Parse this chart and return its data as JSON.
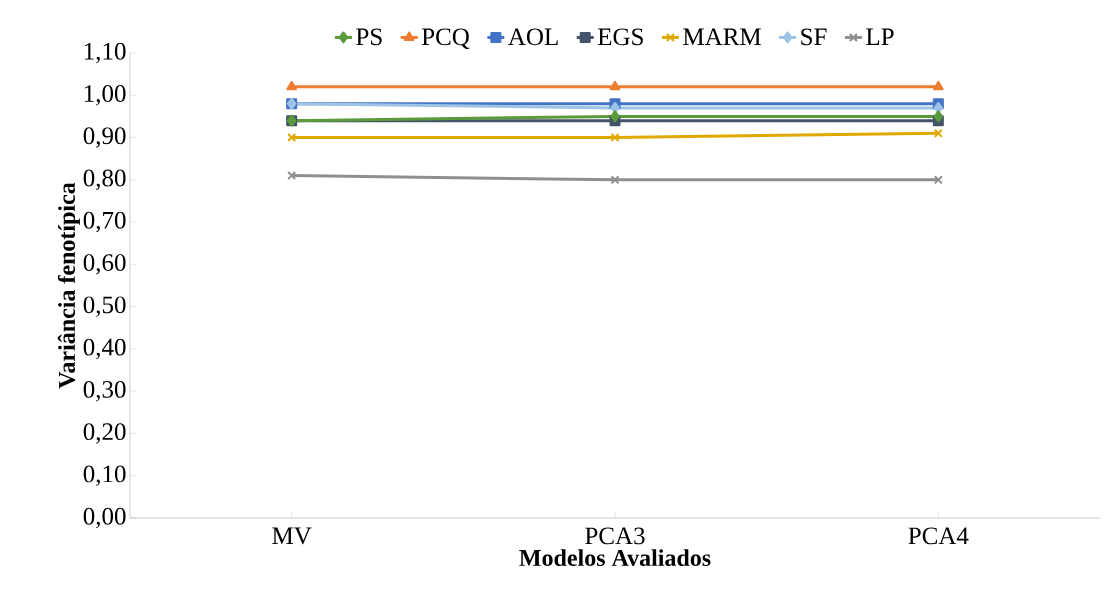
{
  "chart_data": {
    "type": "line",
    "xlabel": "Modelos Avaliados",
    "ylabel": "Variância fenotípica",
    "categories": [
      "MV",
      "PCA3",
      "PCA4"
    ],
    "series": [
      {
        "name": "PS",
        "color": "#5b9b3b",
        "marker": "diamond",
        "values": [
          0.94,
          0.95,
          0.95
        ]
      },
      {
        "name": "PCQ",
        "color": "#ed7d31",
        "marker": "triangle",
        "values": [
          1.02,
          1.02,
          1.02
        ]
      },
      {
        "name": "AOL",
        "color": "#4472c4",
        "marker": "square",
        "values": [
          0.98,
          0.98,
          0.98
        ]
      },
      {
        "name": "EGS",
        "color": "#44546a",
        "marker": "square",
        "values": [
          0.94,
          0.94,
          0.94
        ]
      },
      {
        "name": "MARM",
        "color": "#e0a800",
        "marker": "cross",
        "values": [
          0.9,
          0.9,
          0.91
        ]
      },
      {
        "name": "SF",
        "color": "#9dc3e6",
        "marker": "diamond",
        "values": [
          0.98,
          0.97,
          0.97
        ]
      },
      {
        "name": "LP",
        "color": "#8f8f8f",
        "marker": "cross",
        "values": [
          0.81,
          0.8,
          0.8
        ]
      }
    ],
    "ylim": [
      0,
      1.1
    ],
    "yticks": [
      {
        "value": 0,
        "label": "0,00"
      },
      {
        "value": 0.1,
        "label": "0,10"
      },
      {
        "value": 0.2,
        "label": "0,20"
      },
      {
        "value": 0.3,
        "label": "0,30"
      },
      {
        "value": 0.4,
        "label": "0,40"
      },
      {
        "value": 0.5,
        "label": "0,50"
      },
      {
        "value": 0.6,
        "label": "0,60"
      },
      {
        "value": 0.7,
        "label": "0,70"
      },
      {
        "value": 0.8,
        "label": "0,80"
      },
      {
        "value": 0.9,
        "label": "0,90"
      },
      {
        "value": 1.0,
        "label": "1,00"
      },
      {
        "value": 1.1,
        "label": "1,10"
      }
    ],
    "grid": false,
    "legend": "top",
    "line_style": "solid"
  }
}
